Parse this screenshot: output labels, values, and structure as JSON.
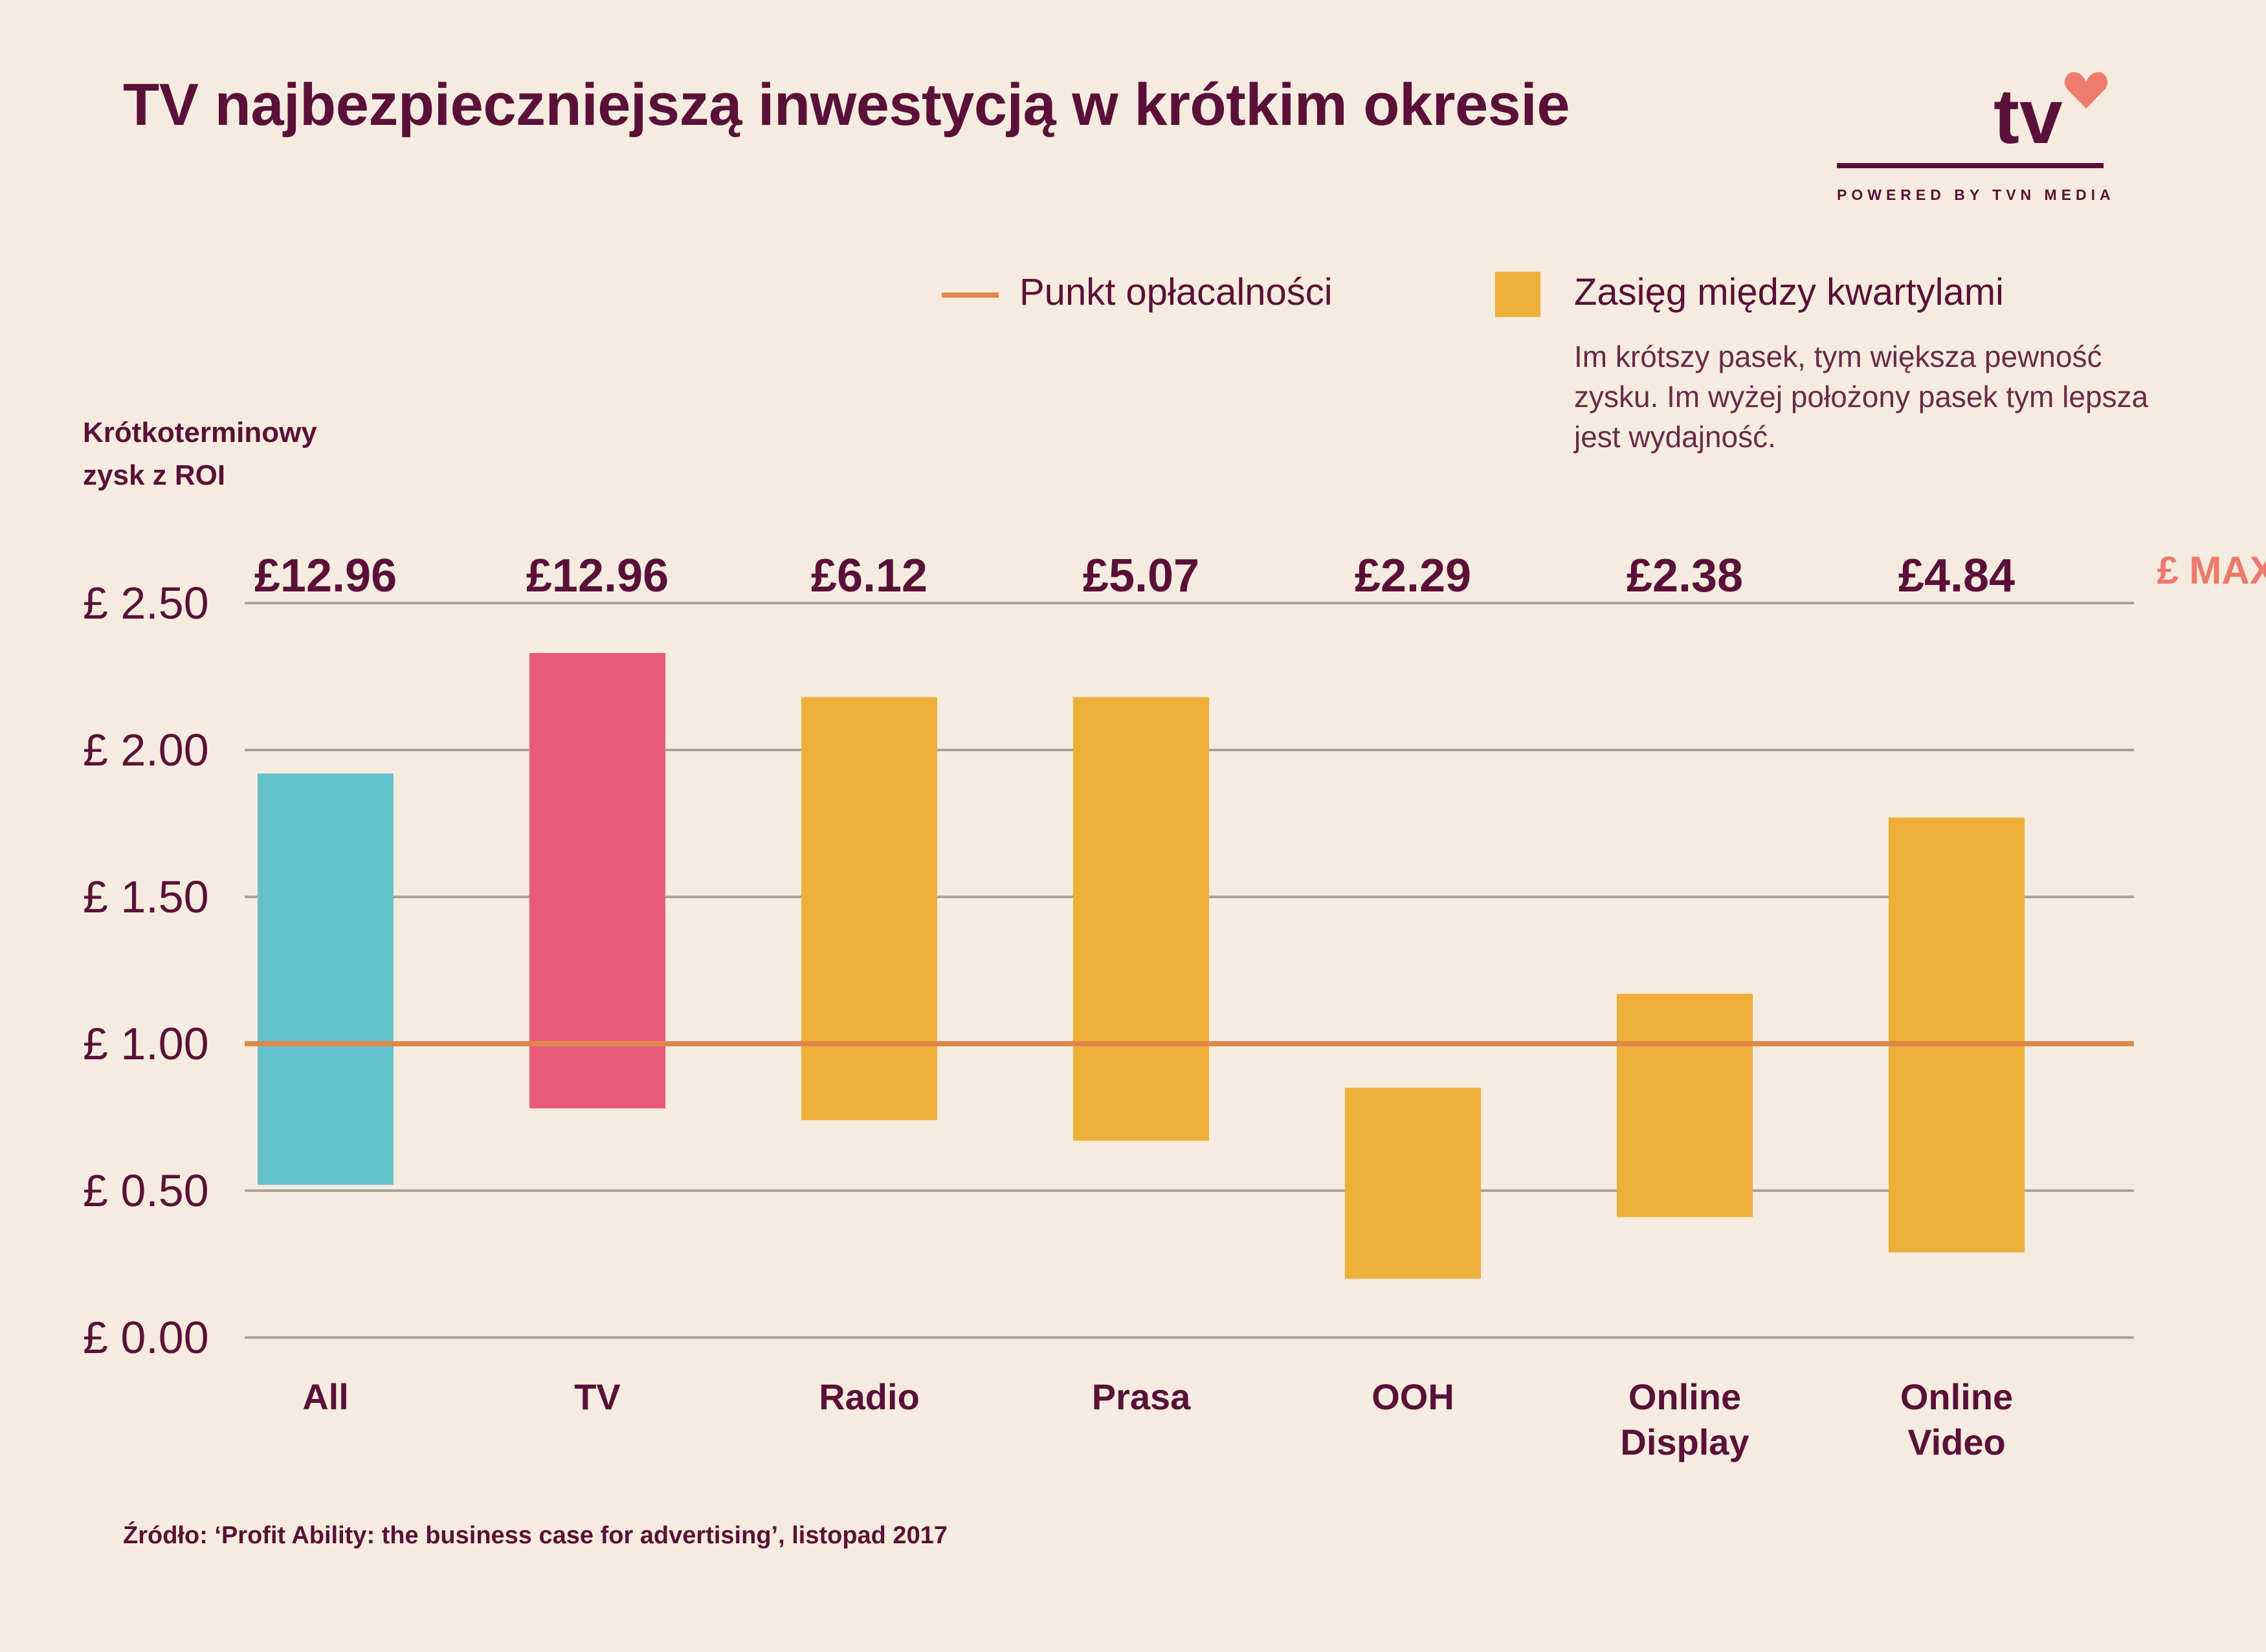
{
  "title": "TV najbezpieczniejszą inwestycją w krótkim okresie",
  "logo": {
    "mark": "tv",
    "tagline": "POWERED BY TVN MEDIA",
    "icon": "heart-icon",
    "color": "#5a1038",
    "heart_color": "#f07c6e"
  },
  "legend": {
    "line_label": "Punkt opłacalności",
    "box_label": "Zasięg między kwartylami",
    "note": "Im krótszy pasek, tym większa pewność zysku. Im wyżej położony pasek tym lepsza jest wydajność."
  },
  "source": "Źródło: ‘Profit Ability: the business case for advertising’, listopad 2017",
  "chart_data": {
    "type": "bar",
    "subtype": "floating-range",
    "ylabel_lines": [
      "Krótkoterminowy",
      "zysk z ROI"
    ],
    "ylim": [
      0,
      2.5
    ],
    "yticks": [
      {
        "value": 0.0,
        "label": "£ 0.00"
      },
      {
        "value": 0.5,
        "label": "£ 0.50"
      },
      {
        "value": 1.0,
        "label": "£ 1.00"
      },
      {
        "value": 1.5,
        "label": "£ 1.50"
      },
      {
        "value": 2.0,
        "label": "£ 2.00"
      },
      {
        "value": 2.5,
        "label": "£ 2.50"
      }
    ],
    "grid": true,
    "breakeven": 1.0,
    "max_label": "£ MAX",
    "categories": [
      {
        "label": [
          "All"
        ],
        "low": 0.52,
        "high": 1.92,
        "max": "£12.96",
        "color": "#63c1cb"
      },
      {
        "label": [
          "TV"
        ],
        "low": 0.78,
        "high": 2.33,
        "max": "£12.96",
        "color": "#ea5b78"
      },
      {
        "label": [
          "Radio"
        ],
        "low": 0.74,
        "high": 2.18,
        "max": "£6.12",
        "color": "#edaf38"
      },
      {
        "label": [
          "Prasa"
        ],
        "low": 0.67,
        "high": 2.18,
        "max": "£5.07",
        "color": "#edaf38"
      },
      {
        "label": [
          "OOH"
        ],
        "low": 0.2,
        "high": 0.85,
        "max": "£2.29",
        "color": "#edaf38"
      },
      {
        "label": [
          "Online",
          "Display"
        ],
        "low": 0.41,
        "high": 1.17,
        "max": "£2.38",
        "color": "#edaf38"
      },
      {
        "label": [
          "Online",
          "Video"
        ],
        "low": 0.29,
        "high": 1.77,
        "max": "£4.84",
        "color": "#edaf38"
      }
    ],
    "colors": {
      "grid": "#a9a39a",
      "breakeven": "#e0874b",
      "max_label": "#ec7a6c",
      "text": "#5a1038"
    }
  }
}
